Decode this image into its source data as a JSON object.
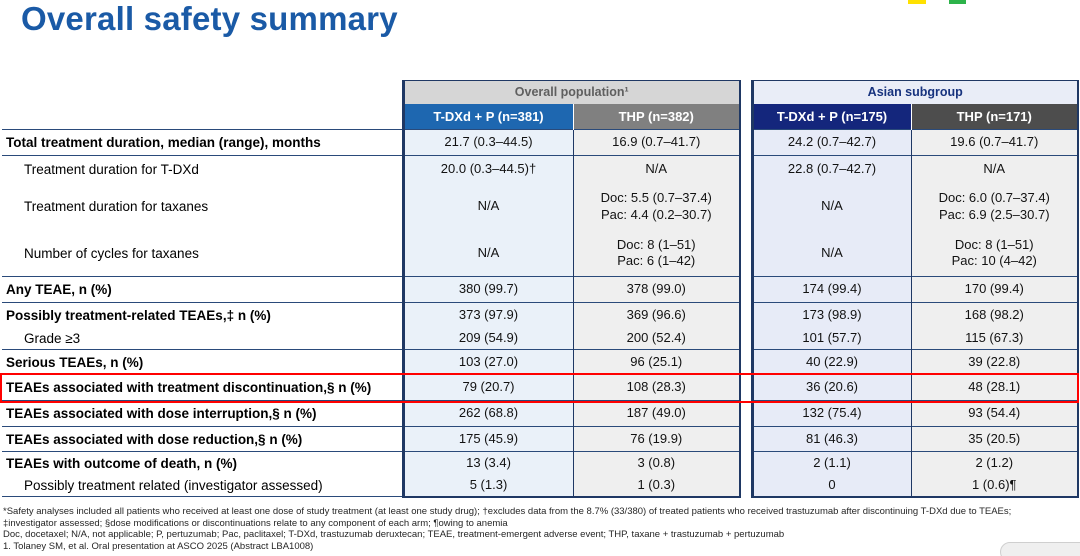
{
  "slide": {
    "title": "Overall safety summary"
  },
  "colors": {
    "title_blue": "#1A5AA6",
    "border_navy": "#1F3864",
    "overall_tdxd_header_bg": "#1E67B0",
    "overall_thp_header_bg": "#808080",
    "asian_tdxd_header_bg": "#14267C",
    "asian_thp_header_bg": "#4D4D4D",
    "overall_group_bg": "#D6D6D6",
    "asian_group_bg": "#E9EDF7",
    "highlight_red": "#FF0000",
    "logo_yellow": "#FFE100",
    "logo_green": "#2DB34A"
  },
  "table": {
    "group_headers": [
      {
        "label": "Overall population¹"
      },
      {
        "label": "Asian subgroup"
      }
    ],
    "column_headers": [
      "T-DXd + P (n=381)",
      "THP (n=382)",
      "T-DXd + P (n=175)",
      "THP (n=171)"
    ],
    "rows": [
      {
        "label": "Total treatment duration, median (range), months",
        "values": [
          "21.7 (0.3–44.5)",
          "16.9 (0.7–41.7)",
          "24.2 (0.7–42.7)",
          "19.6 (0.7–41.7)"
        ]
      },
      {
        "label": "Treatment duration for T-DXd",
        "values": [
          "20.0 (0.3–44.5)†",
          "N/A",
          "22.8 (0.7–42.7)",
          "N/A"
        ]
      },
      {
        "label": "Treatment duration for taxanes",
        "values": [
          "N/A",
          "Doc: 5.5 (0.7–37.4)\nPac: 4.4 (0.2–30.7)",
          "N/A",
          "Doc: 6.0 (0.7–37.4)\nPac: 6.9 (2.5–30.7)"
        ]
      },
      {
        "label": "Number of cycles for taxanes",
        "values": [
          "N/A",
          "Doc: 8 (1–51)\nPac: 6 (1–42)",
          "N/A",
          "Doc: 8 (1–51)\nPac: 10 (4–42)"
        ]
      },
      {
        "label": "Any TEAE, n (%)",
        "values": [
          "380 (99.7)",
          "378 (99.0)",
          "174 (99.4)",
          "170 (99.4)"
        ]
      },
      {
        "label": "Possibly treatment-related TEAEs,‡ n (%)",
        "values": [
          "373 (97.9)",
          "369 (96.6)",
          "173 (98.9)",
          "168 (98.2)"
        ]
      },
      {
        "label": "Grade ≥3",
        "values": [
          "209 (54.9)",
          "200 (52.4)",
          "101 (57.7)",
          "115 (67.3)"
        ]
      },
      {
        "label": "Serious TEAEs, n (%)",
        "values": [
          "103 (27.0)",
          "96 (25.1)",
          "40 (22.9)",
          "39 (22.8)"
        ]
      },
      {
        "label": "TEAEs associated with treatment discontinuation,§ n (%)",
        "values": [
          "79 (20.7)",
          "108 (28.3)",
          "36 (20.6)",
          "48 (28.1)"
        ]
      },
      {
        "label": "TEAEs associated with dose interruption,§ n (%)",
        "values": [
          "262 (68.8)",
          "187 (49.0)",
          "132 (75.4)",
          "93 (54.4)"
        ]
      },
      {
        "label": "TEAEs associated with dose reduction,§ n (%)",
        "values": [
          "175 (45.9)",
          "76 (19.9)",
          "81 (46.3)",
          "35 (20.5)"
        ]
      },
      {
        "label": "TEAEs with outcome of death, n (%)",
        "values": [
          "13 (3.4)",
          "3 (0.8)",
          "2 (1.1)",
          "2 (1.2)"
        ]
      },
      {
        "label": "Possibly treatment related (investigator assessed)",
        "values": [
          "5 (1.3)",
          "1 (0.3)",
          "0",
          "1 (0.6)¶"
        ]
      }
    ]
  },
  "footnotes": [
    "*Safety analyses included all patients who received at least one dose of study treatment (at least one study drug); †excludes data from the 8.7% (33/380) of treated patients who received trastuzumab after discontinuing T-DXd due to TEAEs;",
    "‡investigator assessed; §dose modifications or discontinuations relate to any component of each arm; ¶owing to anemia",
    "Doc, docetaxel; N/A, not applicable; P, pertuzumab; Pac, paclitaxel; T-DXd, trastuzumab deruxtecan; TEAE, treatment-emergent adverse event; THP, taxane + trastuzumab + pertuzumab",
    "1. Tolaney SM, et al. Oral presentation at ASCO 2025 (Abstract LBA1008)"
  ]
}
